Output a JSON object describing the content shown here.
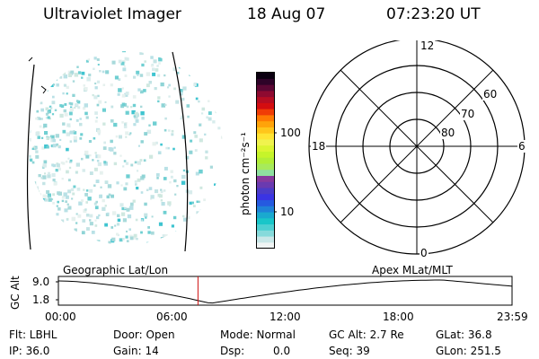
{
  "header": {
    "title": "Ultraviolet Imager",
    "date": "18 Aug 07",
    "time": "07:23:20 UT"
  },
  "colorbar": {
    "unit_label": "photon cm⁻²s⁻¹",
    "ticks": [
      "100",
      "10"
    ],
    "colors": [
      "#f0f4f4",
      "#c9e7e8",
      "#86dadb",
      "#4dd0d2",
      "#19c6c9",
      "#1aa9cf",
      "#1f82d8",
      "#255ae0",
      "#3a34e4",
      "#4b3cc8",
      "#6a3ab0",
      "#883a9e",
      "#8fe0a0",
      "#a7ea5b",
      "#b2ee37",
      "#c6f42a",
      "#dcf532",
      "#f0f34e",
      "#ffe433",
      "#ffc61b",
      "#ffa30a",
      "#ff7b03",
      "#f03d06",
      "#d40d10",
      "#b60d22",
      "#8e0a30",
      "#5b0734",
      "#2e0328",
      "#0b0010"
    ]
  },
  "polar_plot": {
    "labels": {
      "top": "12",
      "bottom": "0",
      "left": "18",
      "right": "6"
    },
    "rings": [
      "60",
      "70",
      "80"
    ]
  },
  "timeline": {
    "left_label": "Geographic Lat/Lon",
    "right_label": "Apex MLat/MLT",
    "y_axis_label": "GC Alt",
    "y_ticks": [
      "9.0",
      "1.8"
    ],
    "x_ticks": [
      "00:00",
      "06:00",
      "12:00",
      "18:00",
      "23:59"
    ],
    "current_time_fraction": 0.3078
  },
  "status": {
    "flt": "Flt: LBHL",
    "ip": "IP: 36.0",
    "door": "Door: Open",
    "gain": "Gain: 14",
    "mode": "Mode: Normal",
    "dsp_label": "Dsp:",
    "dsp_value": "0.0",
    "gc_alt": "GC Alt: 2.7 Re",
    "seq": "Seq: 39",
    "glat": "GLat:  36.8",
    "glon": "GLon: 251.5"
  }
}
